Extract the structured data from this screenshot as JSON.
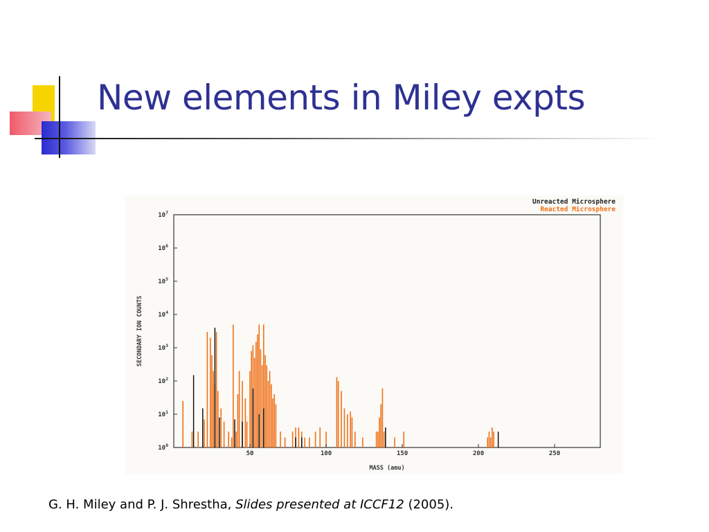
{
  "slide": {
    "title": "New elements in Miley expts",
    "citation": {
      "authors": "G. H. Miley and P. J. Shrestha,",
      "venue": "Slides presented at ICCF12",
      "year": "(2005)."
    }
  },
  "chart_data": {
    "type": "bar",
    "title": "",
    "xlabel": "MASS (amu)",
    "ylabel": "SECONDARY ION COUNTS",
    "xlim": [
      0,
      280
    ],
    "ylim": [
      1,
      10000000
    ],
    "yscale": "log",
    "x_ticks": [
      50,
      100,
      150,
      200,
      250
    ],
    "x_tick_labels": [
      "50",
      "100",
      "150",
      "200",
      "250"
    ],
    "y_ticks": [
      1,
      10,
      100,
      1000,
      10000,
      100000,
      1000000,
      10000000
    ],
    "y_tick_labels": [
      {
        "base": "10",
        "exp": "0"
      },
      {
        "base": "10",
        "exp": "1"
      },
      {
        "base": "10",
        "exp": "2"
      },
      {
        "base": "10",
        "exp": "3"
      },
      {
        "base": "10",
        "exp": "4"
      },
      {
        "base": "10",
        "exp": "5"
      },
      {
        "base": "10",
        "exp": "6"
      },
      {
        "base": "10",
        "exp": "7"
      }
    ],
    "legend_position": "top-right",
    "grid": false,
    "series": [
      {
        "name": "Unreacted Microsphere",
        "color": "#000000",
        "x": [
          13,
          19,
          27,
          30,
          40,
          45,
          52,
          56,
          59,
          80,
          84,
          139,
          213
        ],
        "values": [
          150,
          15,
          4000,
          8,
          7,
          6,
          60,
          10,
          15,
          2,
          2,
          4,
          3
        ]
      },
      {
        "name": "Reacted Microsphere",
        "color": "#f07018",
        "x": [
          6,
          12,
          16,
          20,
          22,
          24,
          25,
          26,
          27,
          28,
          29,
          31,
          33,
          36,
          38,
          39,
          41,
          42,
          43,
          45,
          47,
          48,
          50,
          51,
          52,
          53,
          54,
          55,
          56,
          57,
          58,
          59,
          60,
          61,
          62,
          63,
          64,
          65,
          66,
          67,
          70,
          73,
          78,
          80,
          82,
          84,
          86,
          89,
          93,
          96,
          100,
          107,
          108,
          110,
          112,
          114,
          116,
          117,
          119,
          124,
          133,
          134,
          135,
          136,
          137,
          138,
          145,
          151,
          206,
          207,
          208,
          209,
          210
        ],
        "values": [
          25,
          3,
          3,
          7,
          3000,
          2000,
          600,
          200,
          80,
          3000,
          50,
          15,
          6,
          3,
          2,
          5000,
          3,
          40,
          200,
          100,
          30,
          6,
          200,
          800,
          1200,
          500,
          1500,
          2500,
          5000,
          900,
          300,
          5000,
          600,
          300,
          100,
          200,
          80,
          30,
          40,
          20,
          3,
          2,
          3,
          4,
          4,
          3,
          2,
          2,
          3,
          4,
          3,
          130,
          100,
          50,
          15,
          10,
          12,
          8,
          3,
          2,
          3,
          3,
          8,
          20,
          60,
          3,
          2,
          3,
          2,
          3,
          2,
          4,
          3
        ]
      }
    ]
  }
}
